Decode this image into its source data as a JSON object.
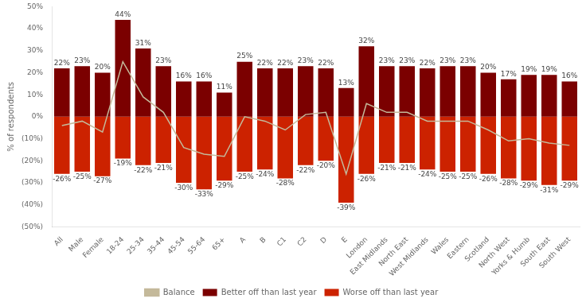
{
  "chart_data": {
    "type": "bar",
    "categories": [
      "All",
      "Male",
      "Female",
      "18-24",
      "25-34",
      "35-44",
      "45-54",
      "55-64",
      "65+",
      "A",
      "B",
      "C1",
      "C2",
      "D",
      "E",
      "London",
      "East Midlands",
      "North East",
      "West Midlands",
      "Wales",
      "Eastern",
      "Scotland",
      "North West",
      "Yorks & Humb",
      "South East",
      "South West"
    ],
    "series": [
      {
        "name": "Better off than last year",
        "color": "#7B0000",
        "values": [
          22,
          23,
          20,
          44,
          31,
          23,
          16,
          16,
          11,
          25,
          22,
          22,
          23,
          22,
          13,
          32,
          23,
          23,
          22,
          23,
          23,
          20,
          17,
          19,
          19,
          16
        ],
        "value_labels": [
          "22%",
          "23%",
          "20%",
          "44%",
          "31%",
          "23%",
          "16%",
          "16%",
          "11%",
          "25%",
          "22%",
          "22%",
          "23%",
          "22%",
          "13%",
          "32%",
          "23%",
          "23%",
          "22%",
          "23%",
          "23%",
          "20%",
          "17%",
          "19%",
          "19%",
          "16%"
        ]
      },
      {
        "name": "Worse off than last year",
        "color": "#CC2200",
        "values": [
          -26,
          -25,
          -27,
          -19,
          -22,
          -21,
          -30,
          -33,
          -29,
          -25,
          -24,
          -28,
          -22,
          -20,
          -39,
          -26,
          -21,
          -21,
          -24,
          -25,
          -25,
          -26,
          -28,
          -29,
          -31,
          -29
        ],
        "value_labels": [
          "-26%",
          "-25%",
          "-27%",
          "-19%",
          "-22%",
          "-21%",
          "-30%",
          "-33%",
          "-29%",
          "-25%",
          "-24%",
          "-28%",
          "-22%",
          "-20%",
          "-39%",
          "-26%",
          "-21%",
          "-21%",
          "-24%",
          "-25%",
          "-25%",
          "-26%",
          "-28%",
          "-29%",
          "-31%",
          "-29%"
        ]
      },
      {
        "name": "Balance",
        "type": "line",
        "color": "#C4B99A",
        "marker": "none",
        "values": [
          -4,
          -2,
          -7,
          25,
          9,
          2,
          -14,
          -17,
          -18,
          0,
          -2,
          -6,
          1,
          2,
          -26,
          6,
          2,
          2,
          -2,
          -2,
          -2,
          -6,
          -11,
          -10,
          -12,
          -13
        ]
      }
    ],
    "ylabel": "% of respondents",
    "ylim": [
      -50,
      50
    ],
    "yticks": [
      {
        "value": 50,
        "label": "50%"
      },
      {
        "value": 40,
        "label": "40%"
      },
      {
        "value": 30,
        "label": "30%"
      },
      {
        "value": 20,
        "label": "20%"
      },
      {
        "value": 10,
        "label": "10%"
      },
      {
        "value": 0,
        "label": "0%"
      },
      {
        "value": -10,
        "label": "(10%)"
      },
      {
        "value": -20,
        "label": "(20%)"
      },
      {
        "value": -30,
        "label": "(30%)"
      },
      {
        "value": -40,
        "label": "(40%)"
      },
      {
        "value": -50,
        "label": "(50%)"
      }
    ],
    "grid": false,
    "legend": "bottom",
    "data_labels": true
  }
}
